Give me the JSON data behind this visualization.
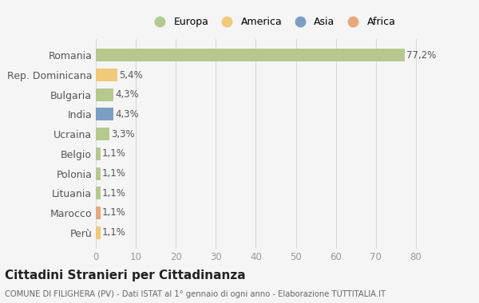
{
  "categories": [
    "Romania",
    "Rep. Dominicana",
    "Bulgaria",
    "India",
    "Ucraina",
    "Belgio",
    "Polonia",
    "Lituania",
    "Marocco",
    "Perù"
  ],
  "values": [
    77.2,
    5.4,
    4.3,
    4.3,
    3.3,
    1.1,
    1.1,
    1.1,
    1.1,
    1.1
  ],
  "labels": [
    "77,2%",
    "5,4%",
    "4,3%",
    "4,3%",
    "3,3%",
    "1,1%",
    "1,1%",
    "1,1%",
    "1,1%",
    "1,1%"
  ],
  "bar_colors": [
    "#b5c98e",
    "#f0c97a",
    "#b5c98e",
    "#7a9fc2",
    "#b5c98e",
    "#b5c98e",
    "#b5c98e",
    "#b5c98e",
    "#e8a87c",
    "#f0c97a"
  ],
  "legend_labels": [
    "Europa",
    "America",
    "Asia",
    "Africa"
  ],
  "legend_colors": [
    "#b5c98e",
    "#f0c97a",
    "#7a9fc2",
    "#e8a87c"
  ],
  "title": "Cittadini Stranieri per Cittadinanza",
  "subtitle": "COMUNE DI FILIGHERA (PV) - Dati ISTAT al 1° gennaio di ogni anno - Elaborazione TUTTITALIA.IT",
  "xlim": [
    0,
    85
  ],
  "xticks": [
    0,
    10,
    20,
    30,
    40,
    50,
    60,
    70,
    80
  ],
  "background_color": "#f5f5f5",
  "plot_bg_color": "#f5f5f5",
  "grid_color": "#d8d8d8",
  "bar_height": 0.65,
  "label_fontsize": 8.5,
  "ytick_fontsize": 9,
  "xtick_fontsize": 8.5
}
